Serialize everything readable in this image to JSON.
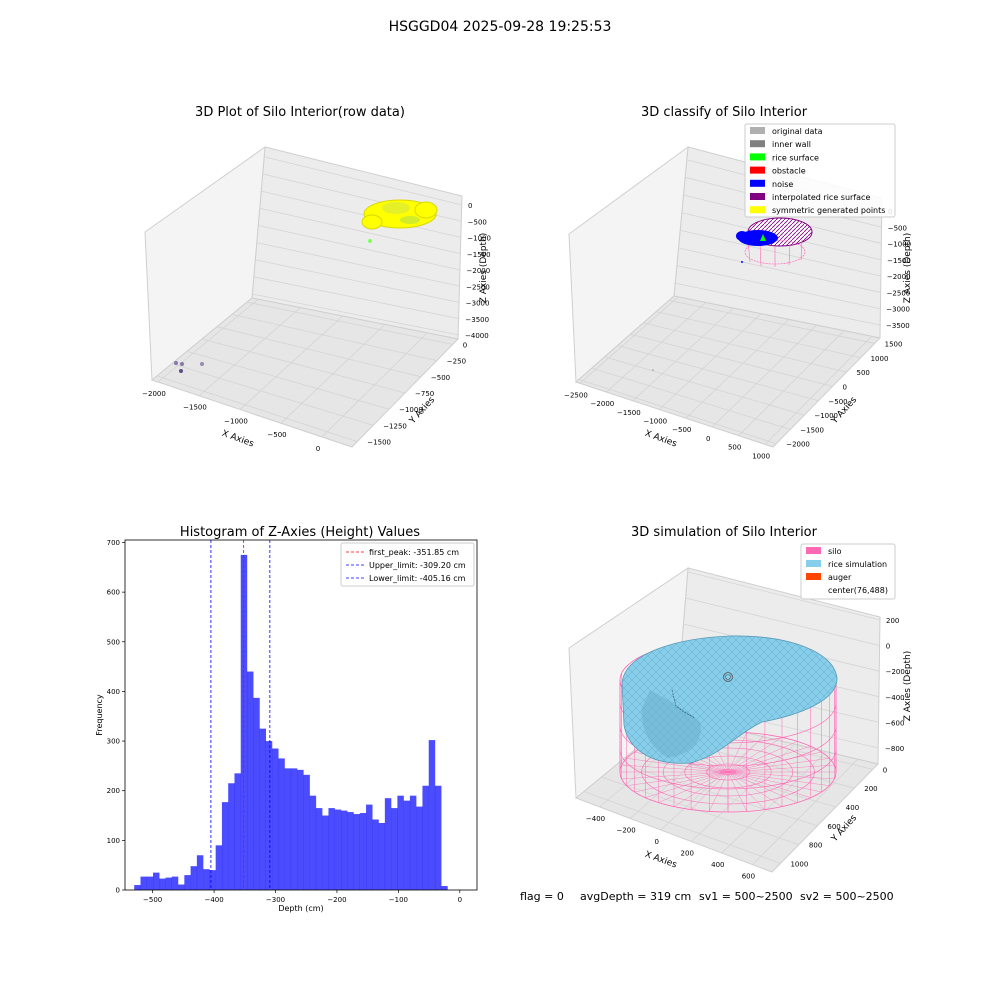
{
  "figure_title": "HSGGD04 2025-09-28 19:25:53",
  "status_line": {
    "flag": "flag = 0",
    "avg_depth": "avgDepth = 319 cm",
    "sv1": "sv1 = 500~2500",
    "sv2": "sv2 = 500~2500"
  },
  "colors": {
    "rice_yellow": "#ffff00",
    "hist_bar": "#0000ff",
    "silo": "#ff69b4",
    "rice_sim": "#87ceeb",
    "auger": "#ff4500",
    "noise": "#0000ff",
    "interp": "#800080",
    "rice_surface": "#00ff00",
    "obstacle": "#ff0000",
    "inner_wall": "#808080",
    "original": "#b0b0b0"
  },
  "chart_data": [
    {
      "type": "scatter",
      "title": "3D Plot of Silo Interior(row data)",
      "xlabel": "X Axies",
      "ylabel": "Y Axies",
      "zlabel": "Z Axies (Depth)",
      "x_ticks": [
        "−2000",
        "−1500",
        "−1000",
        "−500",
        "0"
      ],
      "y_ticks": [
        "0",
        "−250",
        "−500",
        "−750",
        "−1000",
        "−1250",
        "−1500"
      ],
      "z_ticks": [
        "0",
        "−500",
        "−1000",
        "−1500",
        "−2000",
        "−2500",
        "−3000",
        "−3500",
        "−4000"
      ]
    },
    {
      "type": "scatter",
      "title": "3D classify of Silo Interior",
      "xlabel": "X Axies",
      "ylabel": "Y Axies",
      "zlabel": "Z Axies (Depth)",
      "x_ticks": [
        "−2500",
        "−2000",
        "−1500",
        "−1000",
        "−500",
        "0",
        "500",
        "1000"
      ],
      "y_ticks": [
        "1500",
        "1000",
        "500",
        "0",
        "−500",
        "−1000",
        "−1500",
        "−2000"
      ],
      "z_ticks": [
        "0",
        "−500",
        "−1000",
        "−1500",
        "−2000",
        "−2500",
        "−3000",
        "−3500"
      ],
      "legend": [
        "original data",
        "inner wall",
        "rice surface",
        "obstacle",
        "noise",
        "interpolated rice surface",
        "symmetric generated points"
      ],
      "legend_placement": "top-right"
    },
    {
      "type": "bar",
      "title": "Histogram of Z-Axies (Height) Values",
      "xlabel": "Depth (cm)",
      "ylabel": "Frequency",
      "xlim": [
        -545,
        28
      ],
      "ylim": [
        0,
        705
      ],
      "x_ticks": [
        -500,
        -400,
        -300,
        -200,
        -100,
        0
      ],
      "y_ticks": [
        0,
        100,
        200,
        300,
        400,
        500,
        600,
        700
      ],
      "bins": {
        "start": -530,
        "width": 10.2
      },
      "values": [
        10,
        27,
        27,
        35,
        23,
        25,
        27,
        11,
        30,
        48,
        70,
        42,
        40,
        90,
        177,
        215,
        235,
        675,
        440,
        387,
        325,
        300,
        285,
        265,
        245,
        245,
        242,
        232,
        190,
        165,
        150,
        165,
        162,
        160,
        157,
        153,
        155,
        172,
        142,
        135,
        185,
        165,
        190,
        180,
        190,
        168,
        210,
        302,
        210,
        8
      ],
      "lines": [
        {
          "name": "first_peak: -351.85 cm",
          "x": -351.85,
          "color": "#ff0000"
        },
        {
          "name": "Upper_limit: -309.20 cm",
          "x": -309.2,
          "color": "#0000ff"
        },
        {
          "name": "Lower_limit: -405.16 cm",
          "x": -405.16,
          "color": "#0000ff"
        }
      ],
      "legend_placement": "top-right",
      "grid": false
    },
    {
      "type": "scatter",
      "title": "3D simulation of Silo Interior",
      "xlabel": "X Axies",
      "ylabel": "Y Axies",
      "zlabel": "Z Axies (Depth)",
      "x_ticks": [
        "−400",
        "−200",
        "0",
        "200",
        "400",
        "600"
      ],
      "y_ticks": [
        "0",
        "200",
        "400",
        "600",
        "800",
        "1000"
      ],
      "z_ticks": [
        "200",
        "0",
        "−200",
        "−400",
        "−600",
        "−800"
      ],
      "legend": [
        "silo",
        "rice simulation",
        "auger",
        "center(76,488)"
      ],
      "legend_placement": "top-right"
    }
  ]
}
